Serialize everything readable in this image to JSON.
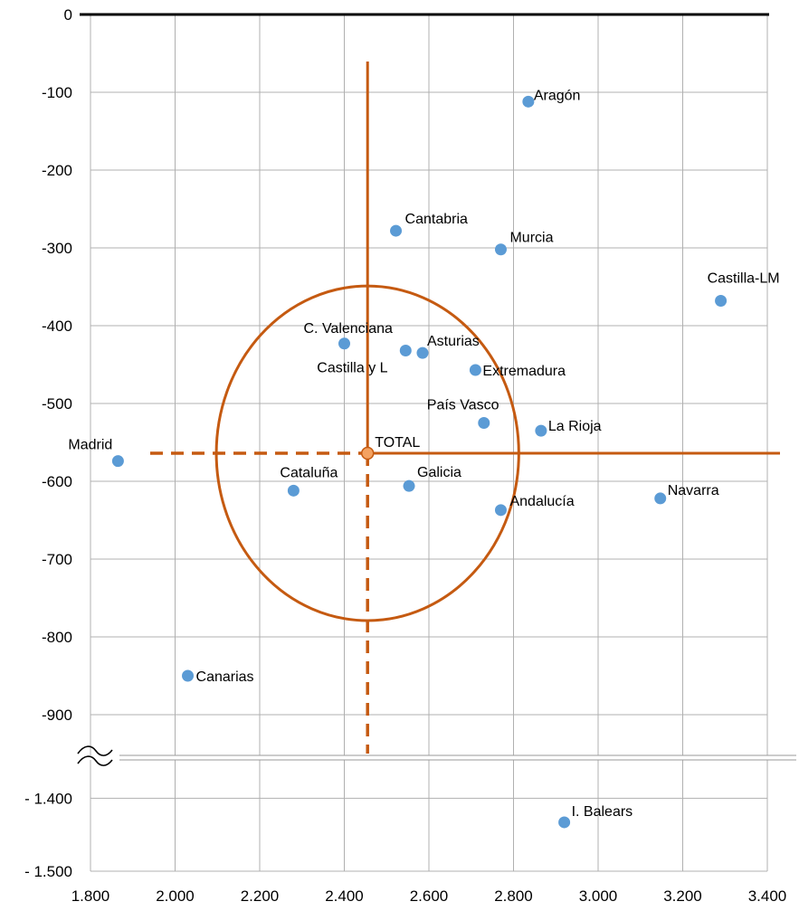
{
  "chart_data": {
    "type": "scatter",
    "title": "",
    "xlabel": "",
    "ylabel": "",
    "xlim": [
      1800,
      3400
    ],
    "x_ticks": [
      1800,
      2000,
      2200,
      2400,
      2600,
      2800,
      3000,
      3200,
      3400
    ],
    "x_tick_labels": [
      "1.800",
      "2.000",
      "2.200",
      "2.400",
      "2.600",
      "2.800",
      "3.000",
      "3.200",
      "3.400"
    ],
    "y_upper_segment": [
      -950,
      0
    ],
    "y_lower_segment": [
      -1500,
      -1350
    ],
    "y_ticks_upper": [
      0,
      -100,
      -200,
      -300,
      -400,
      -500,
      -600,
      -700,
      -800,
      -900
    ],
    "y_tick_labels_upper": [
      "0",
      "-100",
      "-200",
      "-300",
      "-400",
      "-500",
      "-600",
      "-700",
      "-800",
      "-900"
    ],
    "y_ticks_lower": [
      -1400,
      -1500
    ],
    "y_tick_labels_lower": [
      "- 1.400",
      "- 1.500"
    ],
    "grid": true,
    "axis_break": true,
    "marker_color": "#5b9bd5",
    "reference_color": "#c55a11",
    "points": [
      {
        "label": "Aragón",
        "x": 2835,
        "y": -112
      },
      {
        "label": "Cantabria",
        "x": 2522,
        "y": -278
      },
      {
        "label": "Murcia",
        "x": 2770,
        "y": -302
      },
      {
        "label": "Castilla-LM",
        "x": 3290,
        "y": -368
      },
      {
        "label": "C. Valenciana",
        "x": 2400,
        "y": -423
      },
      {
        "label": "Castilla y L",
        "x": 2545,
        "y": -432
      },
      {
        "label": "Asturias",
        "x": 2585,
        "y": -435
      },
      {
        "label": "Extremadura",
        "x": 2710,
        "y": -457
      },
      {
        "label": "País Vasco",
        "x": 2730,
        "y": -525
      },
      {
        "label": "La Rioja",
        "x": 2865,
        "y": -535
      },
      {
        "label": "Madrid",
        "x": 1865,
        "y": -574
      },
      {
        "label": "Cataluña",
        "x": 2280,
        "y": -612
      },
      {
        "label": "Galicia",
        "x": 2553,
        "y": -606
      },
      {
        "label": "Navarra",
        "x": 3147,
        "y": -622
      },
      {
        "label": "Andalucía",
        "x": 2770,
        "y": -637
      },
      {
        "label": "Canarias",
        "x": 2030,
        "y": -850
      },
      {
        "label": "I. Balears",
        "x": 2920,
        "y": -1433
      }
    ],
    "total": {
      "label": "TOTAL",
      "x": 2455,
      "y": -564
    },
    "reference_circle": {
      "cx": 2455,
      "cy": -564,
      "rx": 715,
      "ry": 215
    }
  }
}
